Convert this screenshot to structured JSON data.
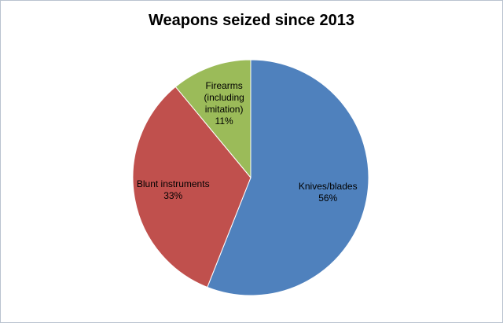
{
  "chart_data": {
    "type": "pie",
    "title": "Weapons seized since 2013",
    "categories": [
      "Knives/blades",
      "Blunt instruments",
      "Firearms (including imitation)"
    ],
    "values": [
      56,
      33,
      11
    ],
    "value_labels": [
      "56%",
      "33%",
      "11%"
    ],
    "colors": [
      "#4f81bd",
      "#c0504d",
      "#9bbb59"
    ]
  }
}
